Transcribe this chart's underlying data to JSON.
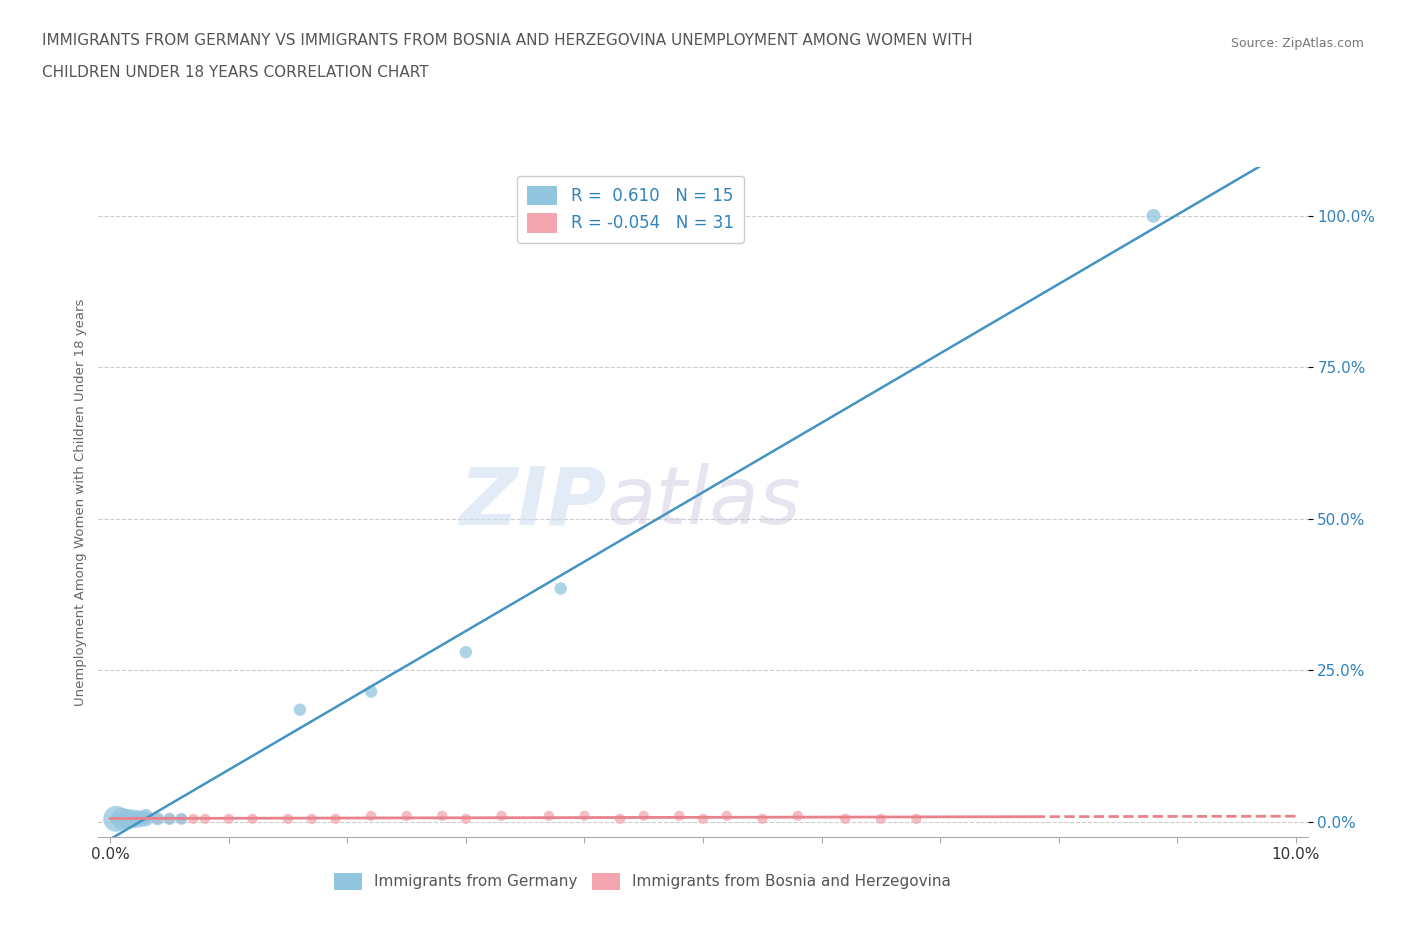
{
  "title_line1": "IMMIGRANTS FROM GERMANY VS IMMIGRANTS FROM BOSNIA AND HERZEGOVINA UNEMPLOYMENT AMONG WOMEN WITH",
  "title_line2": "CHILDREN UNDER 18 YEARS CORRELATION CHART",
  "source": "Source: ZipAtlas.com",
  "ylabel": "Unemployment Among Women with Children Under 18 years",
  "r_blue": 0.61,
  "n_blue": 15,
  "r_pink": -0.054,
  "n_pink": 31,
  "blue_color": "#92c5de",
  "pink_color": "#f4a6b0",
  "trendline_blue_color": "#4393c3",
  "trendline_pink_color": "#e8828c",
  "watermark_zip": "ZIP",
  "watermark_atlas": "atlas",
  "background_color": "#ffffff",
  "blue_scatter_x": [
    0.0005,
    0.001,
    0.0015,
    0.002,
    0.0025,
    0.003,
    0.003,
    0.004,
    0.005,
    0.006,
    0.016,
    0.022,
    0.03,
    0.038,
    0.088
  ],
  "blue_scatter_y": [
    0.005,
    0.005,
    0.005,
    0.005,
    0.005,
    0.005,
    0.01,
    0.005,
    0.005,
    0.005,
    0.185,
    0.215,
    0.28,
    0.385,
    1.0
  ],
  "blue_scatter_sizes": [
    350,
    250,
    200,
    180,
    150,
    120,
    100,
    90,
    80,
    75,
    80,
    80,
    80,
    80,
    100
  ],
  "pink_scatter_x": [
    0.0005,
    0.001,
    0.002,
    0.003,
    0.004,
    0.005,
    0.006,
    0.007,
    0.008,
    0.01,
    0.012,
    0.015,
    0.017,
    0.019,
    0.022,
    0.025,
    0.028,
    0.03,
    0.033,
    0.037,
    0.04,
    0.043,
    0.045,
    0.048,
    0.05,
    0.052,
    0.055,
    0.058,
    0.062,
    0.065,
    0.068
  ],
  "pink_scatter_y": [
    0.005,
    0.005,
    0.005,
    0.005,
    0.005,
    0.005,
    0.005,
    0.005,
    0.005,
    0.005,
    0.005,
    0.005,
    0.005,
    0.005,
    0.01,
    0.01,
    0.01,
    0.005,
    0.01,
    0.01,
    0.01,
    0.005,
    0.01,
    0.01,
    0.005,
    0.01,
    0.005,
    0.01,
    0.005,
    0.005,
    0.005
  ],
  "pink_scatter_sizes": [
    70,
    65,
    60,
    58,
    55,
    55,
    55,
    55,
    55,
    55,
    55,
    55,
    55,
    55,
    55,
    55,
    55,
    55,
    55,
    55,
    55,
    55,
    55,
    55,
    55,
    55,
    55,
    55,
    55,
    55,
    55
  ],
  "ytick_vals": [
    0.0,
    0.25,
    0.5,
    0.75,
    1.0
  ],
  "ytick_labels": [
    "0.0%",
    "25.0%",
    "50.0%",
    "75.0%",
    "100.0%"
  ],
  "xtick_labels": [
    "0.0%",
    "",
    "",
    "",
    "",
    "",
    "",
    "",
    "",
    "",
    "10.0%"
  ]
}
